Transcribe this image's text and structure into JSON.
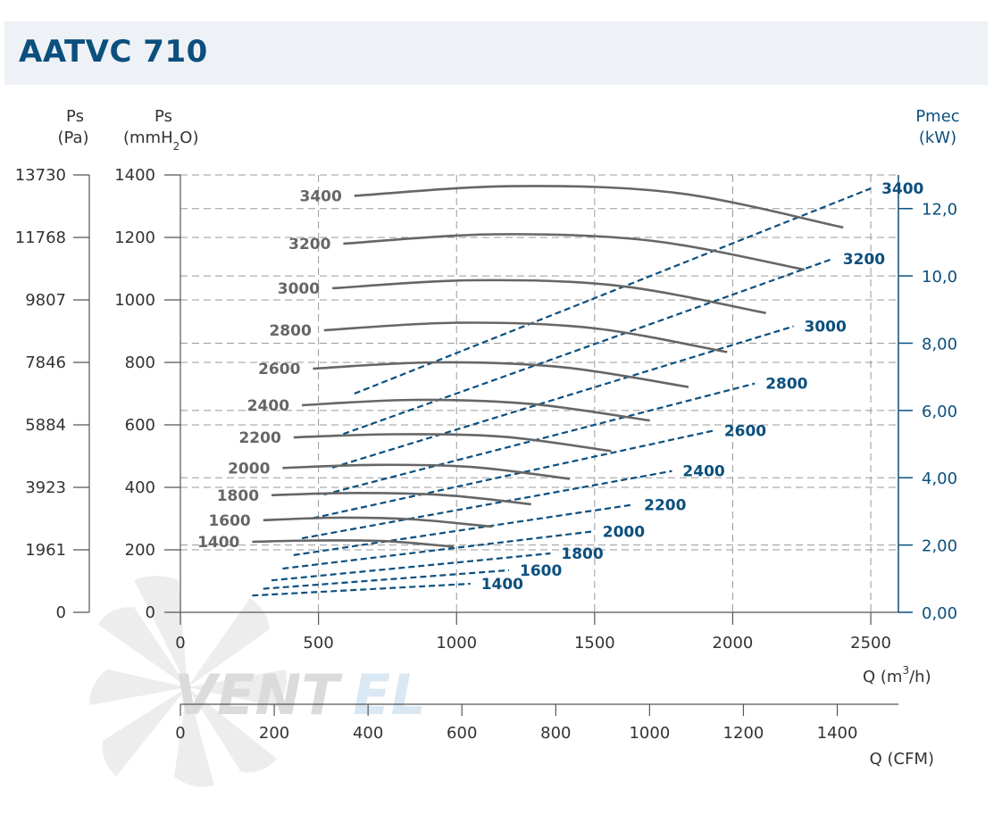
{
  "title": "AATVC 710",
  "watermark": {
    "brand_left": "VENT",
    "brand_right": "EL",
    "color_left": "#d8d8d8",
    "color_right": "#d6e6f3"
  },
  "axes": {
    "left_pa": {
      "label_top": "Ps",
      "label_bottom": "(Pa)",
      "ticks": [
        "13730",
        "11768",
        "9807",
        "7846",
        "5884",
        "3923",
        "1961",
        "0"
      ]
    },
    "left_mm": {
      "label_top": "Ps",
      "label_bottom_pre": "(mmH",
      "label_sub": "2",
      "label_bottom_post": "O)",
      "ticks": [
        "1400",
        "1200",
        "1000",
        "800",
        "600",
        "400",
        "200",
        "0"
      ]
    },
    "right_kw": {
      "label_top": "Pmec",
      "label_bottom": "(kW)",
      "ticks": [
        "12,0",
        "10,0",
        "8,00",
        "6,00",
        "4,00",
        "2,00",
        "0,00"
      ]
    },
    "x_m3h": {
      "label_pre": "Q (m",
      "label_sup": "3",
      "label_post": "/h)",
      "ticks": [
        "0",
        "500",
        "1000",
        "1500",
        "2000",
        "2500"
      ]
    },
    "x_cfm": {
      "label": "Q (CFM)",
      "ticks": [
        "0",
        "200",
        "400",
        "600",
        "800",
        "1000",
        "1200",
        "1400"
      ]
    }
  },
  "colors": {
    "pressure_curve": "#666666",
    "power_curve": "#0b4f7e",
    "grid": "#999999",
    "axis_right": "#0b4f7e",
    "title": "#0b4f7e"
  },
  "chart_data": {
    "type": "line",
    "title": "AATVC 710",
    "xlabel": "Q (m3/h)",
    "ylabel": "Ps (mmH2O)",
    "y2label": "Pmec (kW)",
    "xlim": [
      0,
      2600
    ],
    "ylim": [
      0,
      1400
    ],
    "y2lim": [
      0,
      13.0
    ],
    "pressure_series": [
      {
        "name": "3400",
        "x": [
          630,
          1200,
          1800,
          2400
        ],
        "y": [
          1333,
          1364,
          1342,
          1232
        ]
      },
      {
        "name": "3200",
        "x": [
          590,
          1130,
          1700,
          2260
        ],
        "y": [
          1180,
          1210,
          1190,
          1097
        ]
      },
      {
        "name": "3000",
        "x": [
          550,
          1060,
          1590,
          2120
        ],
        "y": [
          1037,
          1063,
          1045,
          958
        ]
      },
      {
        "name": "2800",
        "x": [
          520,
          1000,
          1490,
          1980
        ],
        "y": [
          903,
          927,
          910,
          833
        ]
      },
      {
        "name": "2600",
        "x": [
          480,
          920,
          1380,
          1840
        ],
        "y": [
          780,
          800,
          785,
          721
        ]
      },
      {
        "name": "2400",
        "x": [
          440,
          850,
          1270,
          1700
        ],
        "y": [
          663,
          680,
          667,
          614
        ]
      },
      {
        "name": "2200",
        "x": [
          410,
          780,
          1170,
          1560
        ],
        "y": [
          560,
          570,
          562,
          516
        ]
      },
      {
        "name": "2000",
        "x": [
          370,
          710,
          1060,
          1410
        ],
        "y": [
          462,
          472,
          465,
          427
        ]
      },
      {
        "name": "1800",
        "x": [
          330,
          640,
          960,
          1270
        ],
        "y": [
          375,
          382,
          375,
          346
        ]
      },
      {
        "name": "1600",
        "x": [
          300,
          570,
          850,
          1130
        ],
        "y": [
          295,
          303,
          297,
          274
        ]
      },
      {
        "name": "1400",
        "x": [
          260,
          500,
          740,
          990
        ],
        "y": [
          226,
          230,
          228,
          210
        ]
      }
    ],
    "power_series": [
      {
        "name": "3400",
        "x": [
          630,
          2500
        ],
        "y": [
          6.5,
          12.6
        ]
      },
      {
        "name": "3200",
        "x": [
          590,
          2360
        ],
        "y": [
          5.3,
          10.5
        ]
      },
      {
        "name": "3000",
        "x": [
          550,
          2220
        ],
        "y": [
          4.3,
          8.5
        ]
      },
      {
        "name": "2800",
        "x": [
          520,
          2080
        ],
        "y": [
          3.5,
          6.8
        ]
      },
      {
        "name": "2600",
        "x": [
          480,
          1930
        ],
        "y": [
          2.8,
          5.4
        ]
      },
      {
        "name": "2400",
        "x": [
          440,
          1780
        ],
        "y": [
          2.2,
          4.2
        ]
      },
      {
        "name": "2200",
        "x": [
          410,
          1640
        ],
        "y": [
          1.7,
          3.2
        ]
      },
      {
        "name": "2000",
        "x": [
          370,
          1490
        ],
        "y": [
          1.3,
          2.4
        ]
      },
      {
        "name": "1800",
        "x": [
          330,
          1340
        ],
        "y": [
          0.95,
          1.75
        ]
      },
      {
        "name": "1600",
        "x": [
          300,
          1190
        ],
        "y": [
          0.7,
          1.25
        ]
      },
      {
        "name": "1400",
        "x": [
          260,
          1050
        ],
        "y": [
          0.5,
          0.85
        ]
      }
    ],
    "grid": true
  }
}
